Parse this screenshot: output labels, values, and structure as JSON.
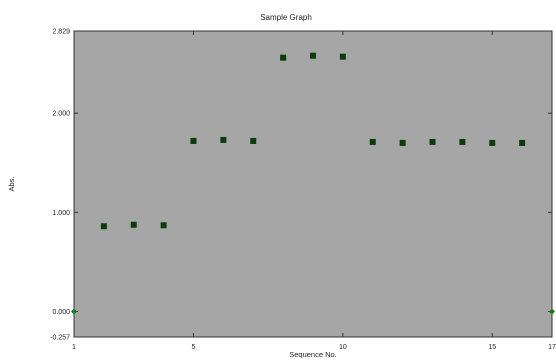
{
  "chart_data": {
    "type": "scatter",
    "title": "Sample Graph",
    "xlabel": "Sequence No.",
    "ylabel": "Abs.",
    "xlim": [
      1,
      17
    ],
    "ylim": [
      -0.257,
      2.829
    ],
    "x_ticks": [
      1,
      5,
      10,
      15,
      17
    ],
    "x_tick_labels": [
      "1",
      "5",
      "10",
      "15",
      "17"
    ],
    "y_ticks": [
      2.829,
      2.0,
      1.0,
      0.0,
      -0.257
    ],
    "y_tick_labels": [
      "2.829",
      "2.000",
      "1.000",
      "0.000",
      "-0.257"
    ],
    "grid": false,
    "plot_background": "#a6a6a6",
    "marker_color": "#0b3d0b",
    "baseline_marker_color": "#1a7a1a",
    "series": [
      {
        "x": [
          2,
          3,
          4,
          5,
          6,
          7,
          8,
          9,
          10,
          11,
          12,
          13,
          14,
          15,
          16
        ],
        "y": [
          0.86,
          0.875,
          0.87,
          1.72,
          1.73,
          1.72,
          2.56,
          2.58,
          2.57,
          1.71,
          1.7,
          1.71,
          1.71,
          1.7,
          1.7
        ]
      }
    ],
    "baseline_points": {
      "x": [
        1,
        17
      ],
      "y": [
        0.0,
        0.0
      ]
    }
  }
}
